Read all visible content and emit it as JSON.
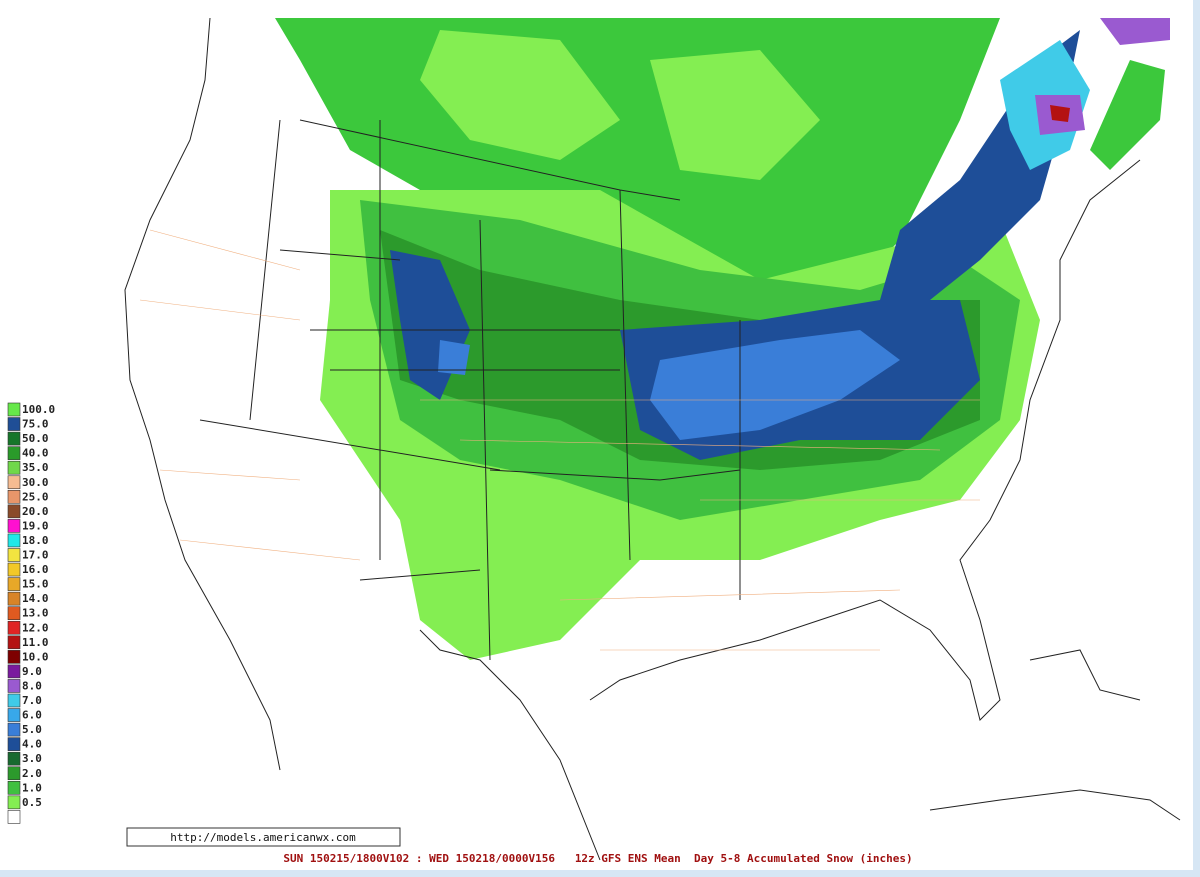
{
  "legend": {
    "items": [
      {
        "label": "100.0",
        "color": "#66e84a"
      },
      {
        "label": "75.0",
        "color": "#1f4e96"
      },
      {
        "label": "50.0",
        "color": "#16762a"
      },
      {
        "label": "40.0",
        "color": "#2a9a2a"
      },
      {
        "label": "35.0",
        "color": "#70d84a"
      },
      {
        "label": "30.0",
        "color": "#f6bc92"
      },
      {
        "label": "25.0",
        "color": "#e8966a"
      },
      {
        "label": "20.0",
        "color": "#8a4a2a"
      },
      {
        "label": "19.0",
        "color": "#ff10d0"
      },
      {
        "label": "18.0",
        "color": "#20e8e8"
      },
      {
        "label": "17.0",
        "color": "#f2e440"
      },
      {
        "label": "16.0",
        "color": "#f2c828"
      },
      {
        "label": "15.0",
        "color": "#e8a828"
      },
      {
        "label": "14.0",
        "color": "#d88428"
      },
      {
        "label": "13.0",
        "color": "#e05a20"
      },
      {
        "label": "12.0",
        "color": "#e02424"
      },
      {
        "label": "11.0",
        "color": "#b41212"
      },
      {
        "label": "10.0",
        "color": "#7e0000"
      },
      {
        "label": "9.0",
        "color": "#7a1a9e"
      },
      {
        "label": "8.0",
        "color": "#9a5ad0"
      },
      {
        "label": "7.0",
        "color": "#40cbe8"
      },
      {
        "label": "6.0",
        "color": "#38a8ea"
      },
      {
        "label": "5.0",
        "color": "#3a7ed8"
      },
      {
        "label": "4.0",
        "color": "#1e4e98"
      },
      {
        "label": "3.0",
        "color": "#186a30"
      },
      {
        "label": "2.0",
        "color": "#2c9a2c"
      },
      {
        "label": "1.0",
        "color": "#40c040"
      },
      {
        "label": "0.5",
        "color": "#84ee52"
      },
      {
        "color": "#ffffff"
      }
    ]
  },
  "source_url": "http://models.americanwx.com",
  "footer": "SUN 150215/1800V102 : WED 150218/0000V156   12z GFS ENS Mean  Day 5-8 Accumulated Snow (inches)"
}
